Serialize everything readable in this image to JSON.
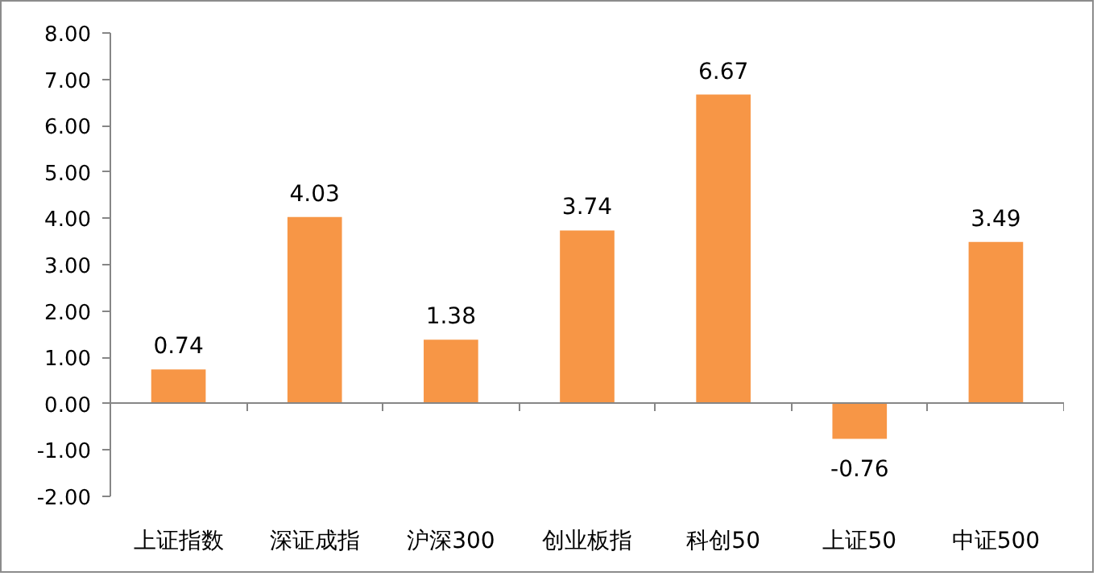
{
  "chart_data": {
    "type": "bar",
    "categories": [
      "上证指数",
      "深证成指",
      "沪深300",
      "创业板指",
      "科创50",
      "上证50",
      "中证500"
    ],
    "values": [
      0.74,
      4.03,
      1.38,
      3.74,
      6.67,
      -0.76,
      3.49
    ],
    "color": "#f79646",
    "ylim": [
      -2,
      8
    ],
    "yticks": [
      {
        "value": -2,
        "label": "-2.00"
      },
      {
        "value": -1,
        "label": "-1.00"
      },
      {
        "value": 0,
        "label": "0.00"
      },
      {
        "value": 1,
        "label": "1.00"
      },
      {
        "value": 2,
        "label": "2.00"
      },
      {
        "value": 3,
        "label": "3.00"
      },
      {
        "value": 4,
        "label": "4.00"
      },
      {
        "value": 5,
        "label": "5.00"
      },
      {
        "value": 6,
        "label": "6.00"
      },
      {
        "value": 7,
        "label": "7.00"
      },
      {
        "value": 8,
        "label": "8.00"
      }
    ],
    "data_labels": true
  }
}
